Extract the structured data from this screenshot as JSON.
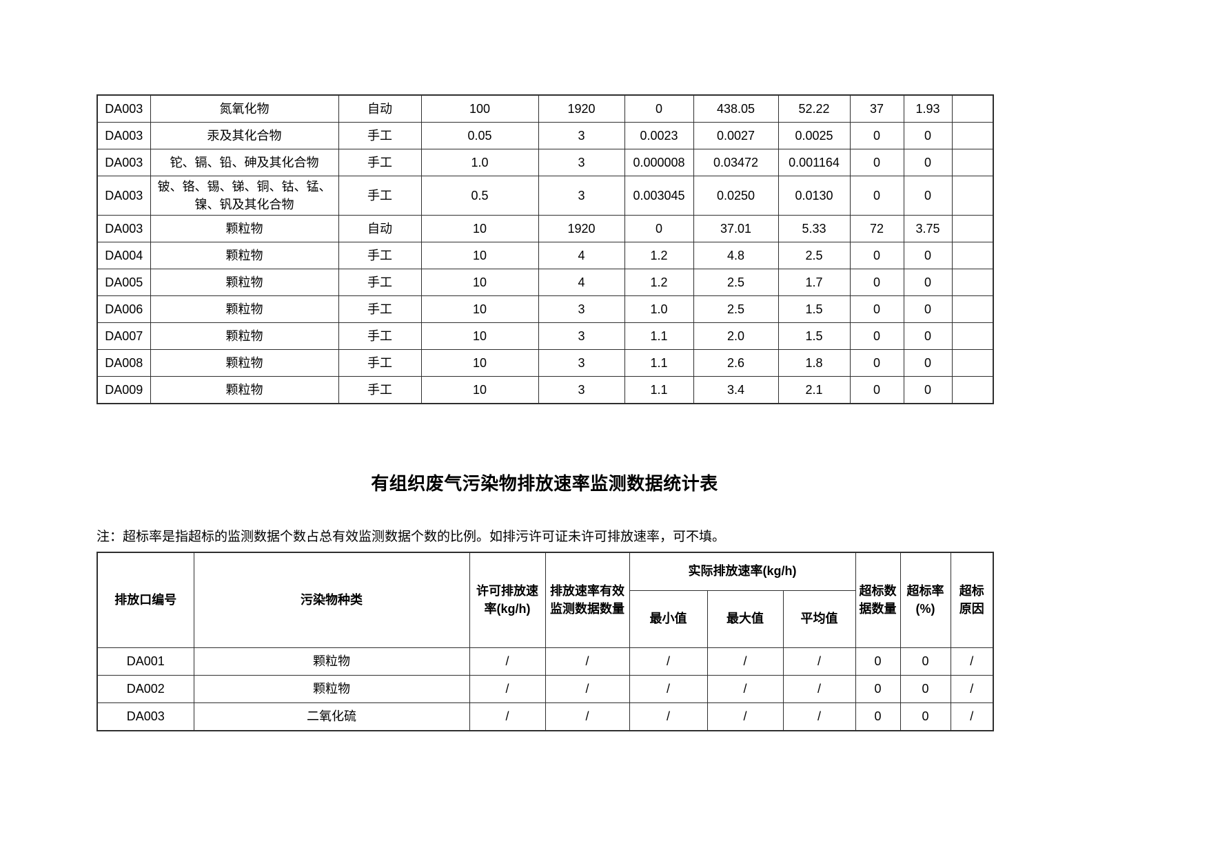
{
  "title": "有组织废气污染物排放速率监测数据统计表",
  "note": "注：超标率是指超标的监测数据个数占总有效监测数据个数的比例。如排污许可证未许可排放速率，可不填。",
  "colors": {
    "page_background": "#ffffff",
    "text": "#000000",
    "table_border": "#2e2e2e"
  },
  "table1": {
    "description": "concentration monitoring data rows (continued table, no visible header)",
    "rows": [
      [
        "DA003",
        "氮氧化物",
        "自动",
        "100",
        "1920",
        "0",
        "438.05",
        "52.22",
        "37",
        "1.93",
        ""
      ],
      [
        "DA003",
        "汞及其化合物",
        "手工",
        "0.05",
        "3",
        "0.0023",
        "0.0027",
        "0.0025",
        "0",
        "0",
        ""
      ],
      [
        "DA003",
        "铊、镉、铅、砷及其化合物",
        "手工",
        "1.0",
        "3",
        "0.000008",
        "0.03472",
        "0.001164",
        "0",
        "0",
        ""
      ],
      [
        "DA003",
        "铍、铬、锡、锑、铜、钴、锰、镍、钒及其化合物",
        "手工",
        "0.5",
        "3",
        "0.003045",
        "0.0250",
        "0.0130",
        "0",
        "0",
        ""
      ],
      [
        "DA003",
        "颗粒物",
        "自动",
        "10",
        "1920",
        "0",
        "37.01",
        "5.33",
        "72",
        "3.75",
        ""
      ],
      [
        "DA004",
        "颗粒物",
        "手工",
        "10",
        "4",
        "1.2",
        "4.8",
        "2.5",
        "0",
        "0",
        ""
      ],
      [
        "DA005",
        "颗粒物",
        "手工",
        "10",
        "4",
        "1.2",
        "2.5",
        "1.7",
        "0",
        "0",
        ""
      ],
      [
        "DA006",
        "颗粒物",
        "手工",
        "10",
        "3",
        "1.0",
        "2.5",
        "1.5",
        "0",
        "0",
        ""
      ],
      [
        "DA007",
        "颗粒物",
        "手工",
        "10",
        "3",
        "1.1",
        "2.0",
        "1.5",
        "0",
        "0",
        ""
      ],
      [
        "DA008",
        "颗粒物",
        "手工",
        "10",
        "3",
        "1.1",
        "2.6",
        "1.8",
        "0",
        "0",
        ""
      ],
      [
        "DA009",
        "颗粒物",
        "手工",
        "10",
        "3",
        "1.1",
        "3.4",
        "2.1",
        "0",
        "0",
        ""
      ]
    ]
  },
  "table2": {
    "headers": {
      "outlet_id": "排放口编号",
      "pollutant_type": "污染物种类",
      "permitted_rate": "许可排放速率(kg/h)",
      "valid_data_count": "排放速率有效监测数据数量",
      "actual_rate_group": "实际排放速率(kg/h)",
      "min": "最小值",
      "max": "最大值",
      "avg": "平均值",
      "exceed_data_count": "超标数据数量",
      "exceed_rate": "超标率(%)",
      "exceed_reason": "超标原因"
    },
    "rows": [
      [
        "DA001",
        "颗粒物",
        "/",
        "/",
        "/",
        "/",
        "/",
        "0",
        "0",
        "/"
      ],
      [
        "DA002",
        "颗粒物",
        "/",
        "/",
        "/",
        "/",
        "/",
        "0",
        "0",
        "/"
      ],
      [
        "DA003",
        "二氧化硫",
        "/",
        "/",
        "/",
        "/",
        "/",
        "0",
        "0",
        "/"
      ]
    ]
  }
}
